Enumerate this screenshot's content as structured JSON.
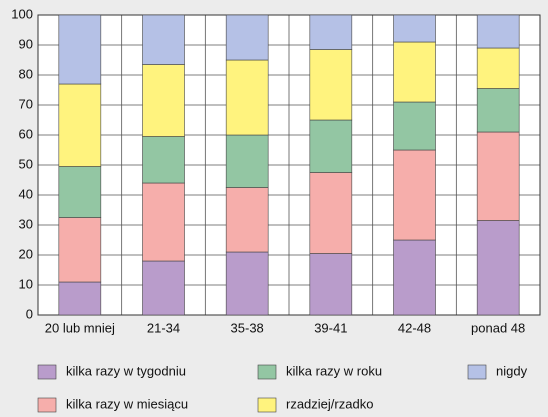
{
  "chart_data": {
    "type": "stacked_bar",
    "categories": [
      "20 lub mniej",
      "21-34",
      "35-38",
      "39-41",
      "42-48",
      "ponad 48"
    ],
    "series": [
      {
        "name": "kilka razy w tygodniu",
        "color": "#b99ccb",
        "values": [
          11,
          18,
          21,
          20.5,
          25,
          31.5
        ]
      },
      {
        "name": "kilka razy w miesiącu",
        "color": "#f6aeab",
        "values": [
          21.5,
          26,
          21.5,
          27,
          30,
          29.5
        ]
      },
      {
        "name": "kilka razy w roku",
        "color": "#93c6a3",
        "values": [
          17,
          15.5,
          17.5,
          17.5,
          16,
          14.5
        ]
      },
      {
        "name": "rzadziej/rzadko",
        "color": "#fff37e",
        "values": [
          27.5,
          24,
          25,
          23.5,
          20,
          13.5
        ]
      },
      {
        "name": "nigdy",
        "color": "#b5c1e6",
        "values": [
          23,
          16.5,
          15,
          11.5,
          9,
          11
        ]
      }
    ],
    "ylim": [
      0,
      100
    ],
    "yticks": [
      0,
      10,
      20,
      30,
      40,
      50,
      60,
      70,
      80,
      90,
      100
    ],
    "grid": true
  }
}
